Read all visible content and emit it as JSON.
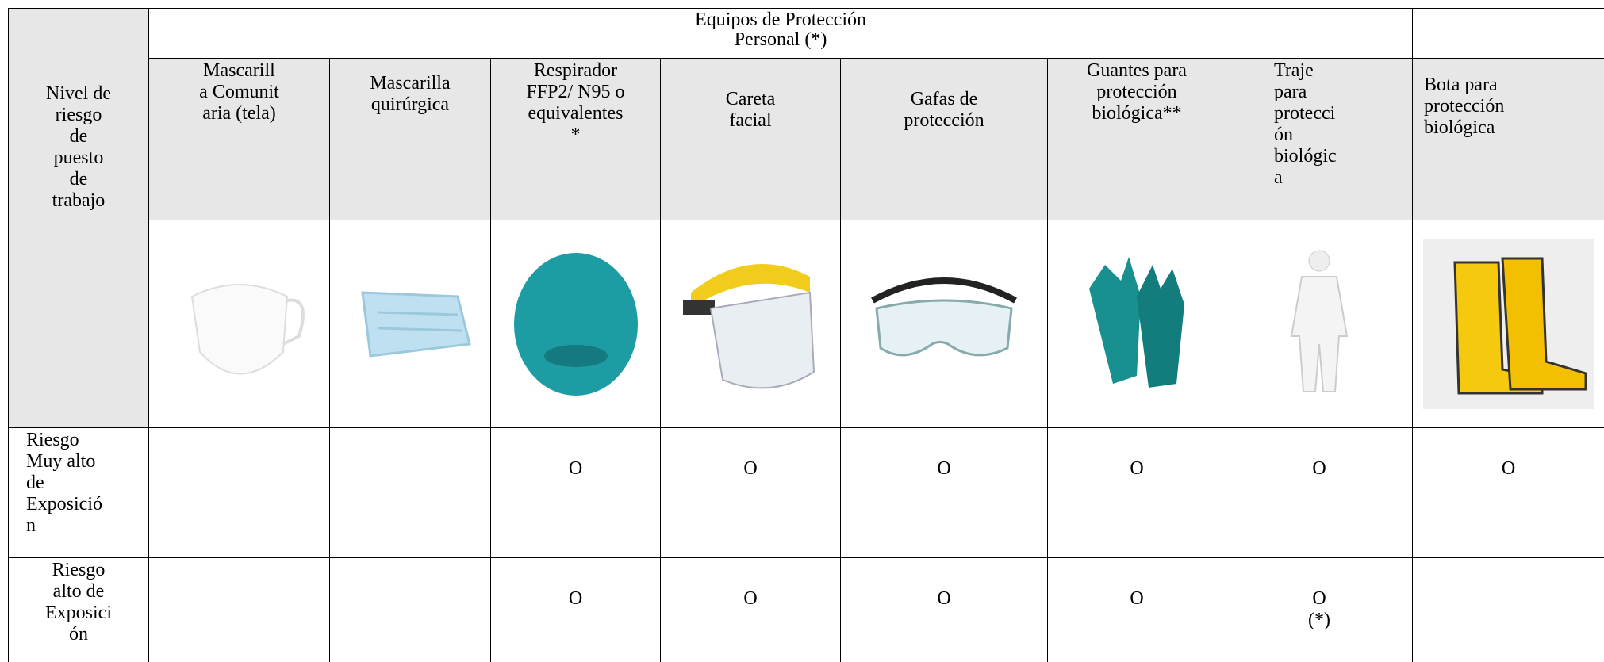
{
  "header": {
    "row_header": "Nivel de\nriesgo\nde\npuesto\nde\ntrabajo",
    "group_title": "Equipos de Protección\nPersonal (*)",
    "columns": [
      "Mascarill\na Comunit\naria (tela)",
      "Mascarilla\nquirúrgica",
      "Respirador\nFFP2/ N95 o\nequivalentes\n*",
      "Careta\nfacial",
      "Gafas de\nprotección",
      "Guantes para\nprotección\nbiológica**",
      "Traje\npara\nprotecci\nón\nbiológic\na",
      "Bota para\nprotección\nbiológica"
    ]
  },
  "rows": [
    {
      "label": "Riesgo\nMuy alto\nde\nExposició\nn",
      "cells": [
        null,
        null,
        "O",
        "O",
        "O",
        "O",
        "O",
        "O"
      ]
    },
    {
      "label": "Riesgo\nalto de\nExposici\nón",
      "cells": [
        null,
        null,
        "O",
        "O",
        "O",
        "O",
        "O\n(*)",
        null
      ]
    }
  ]
}
